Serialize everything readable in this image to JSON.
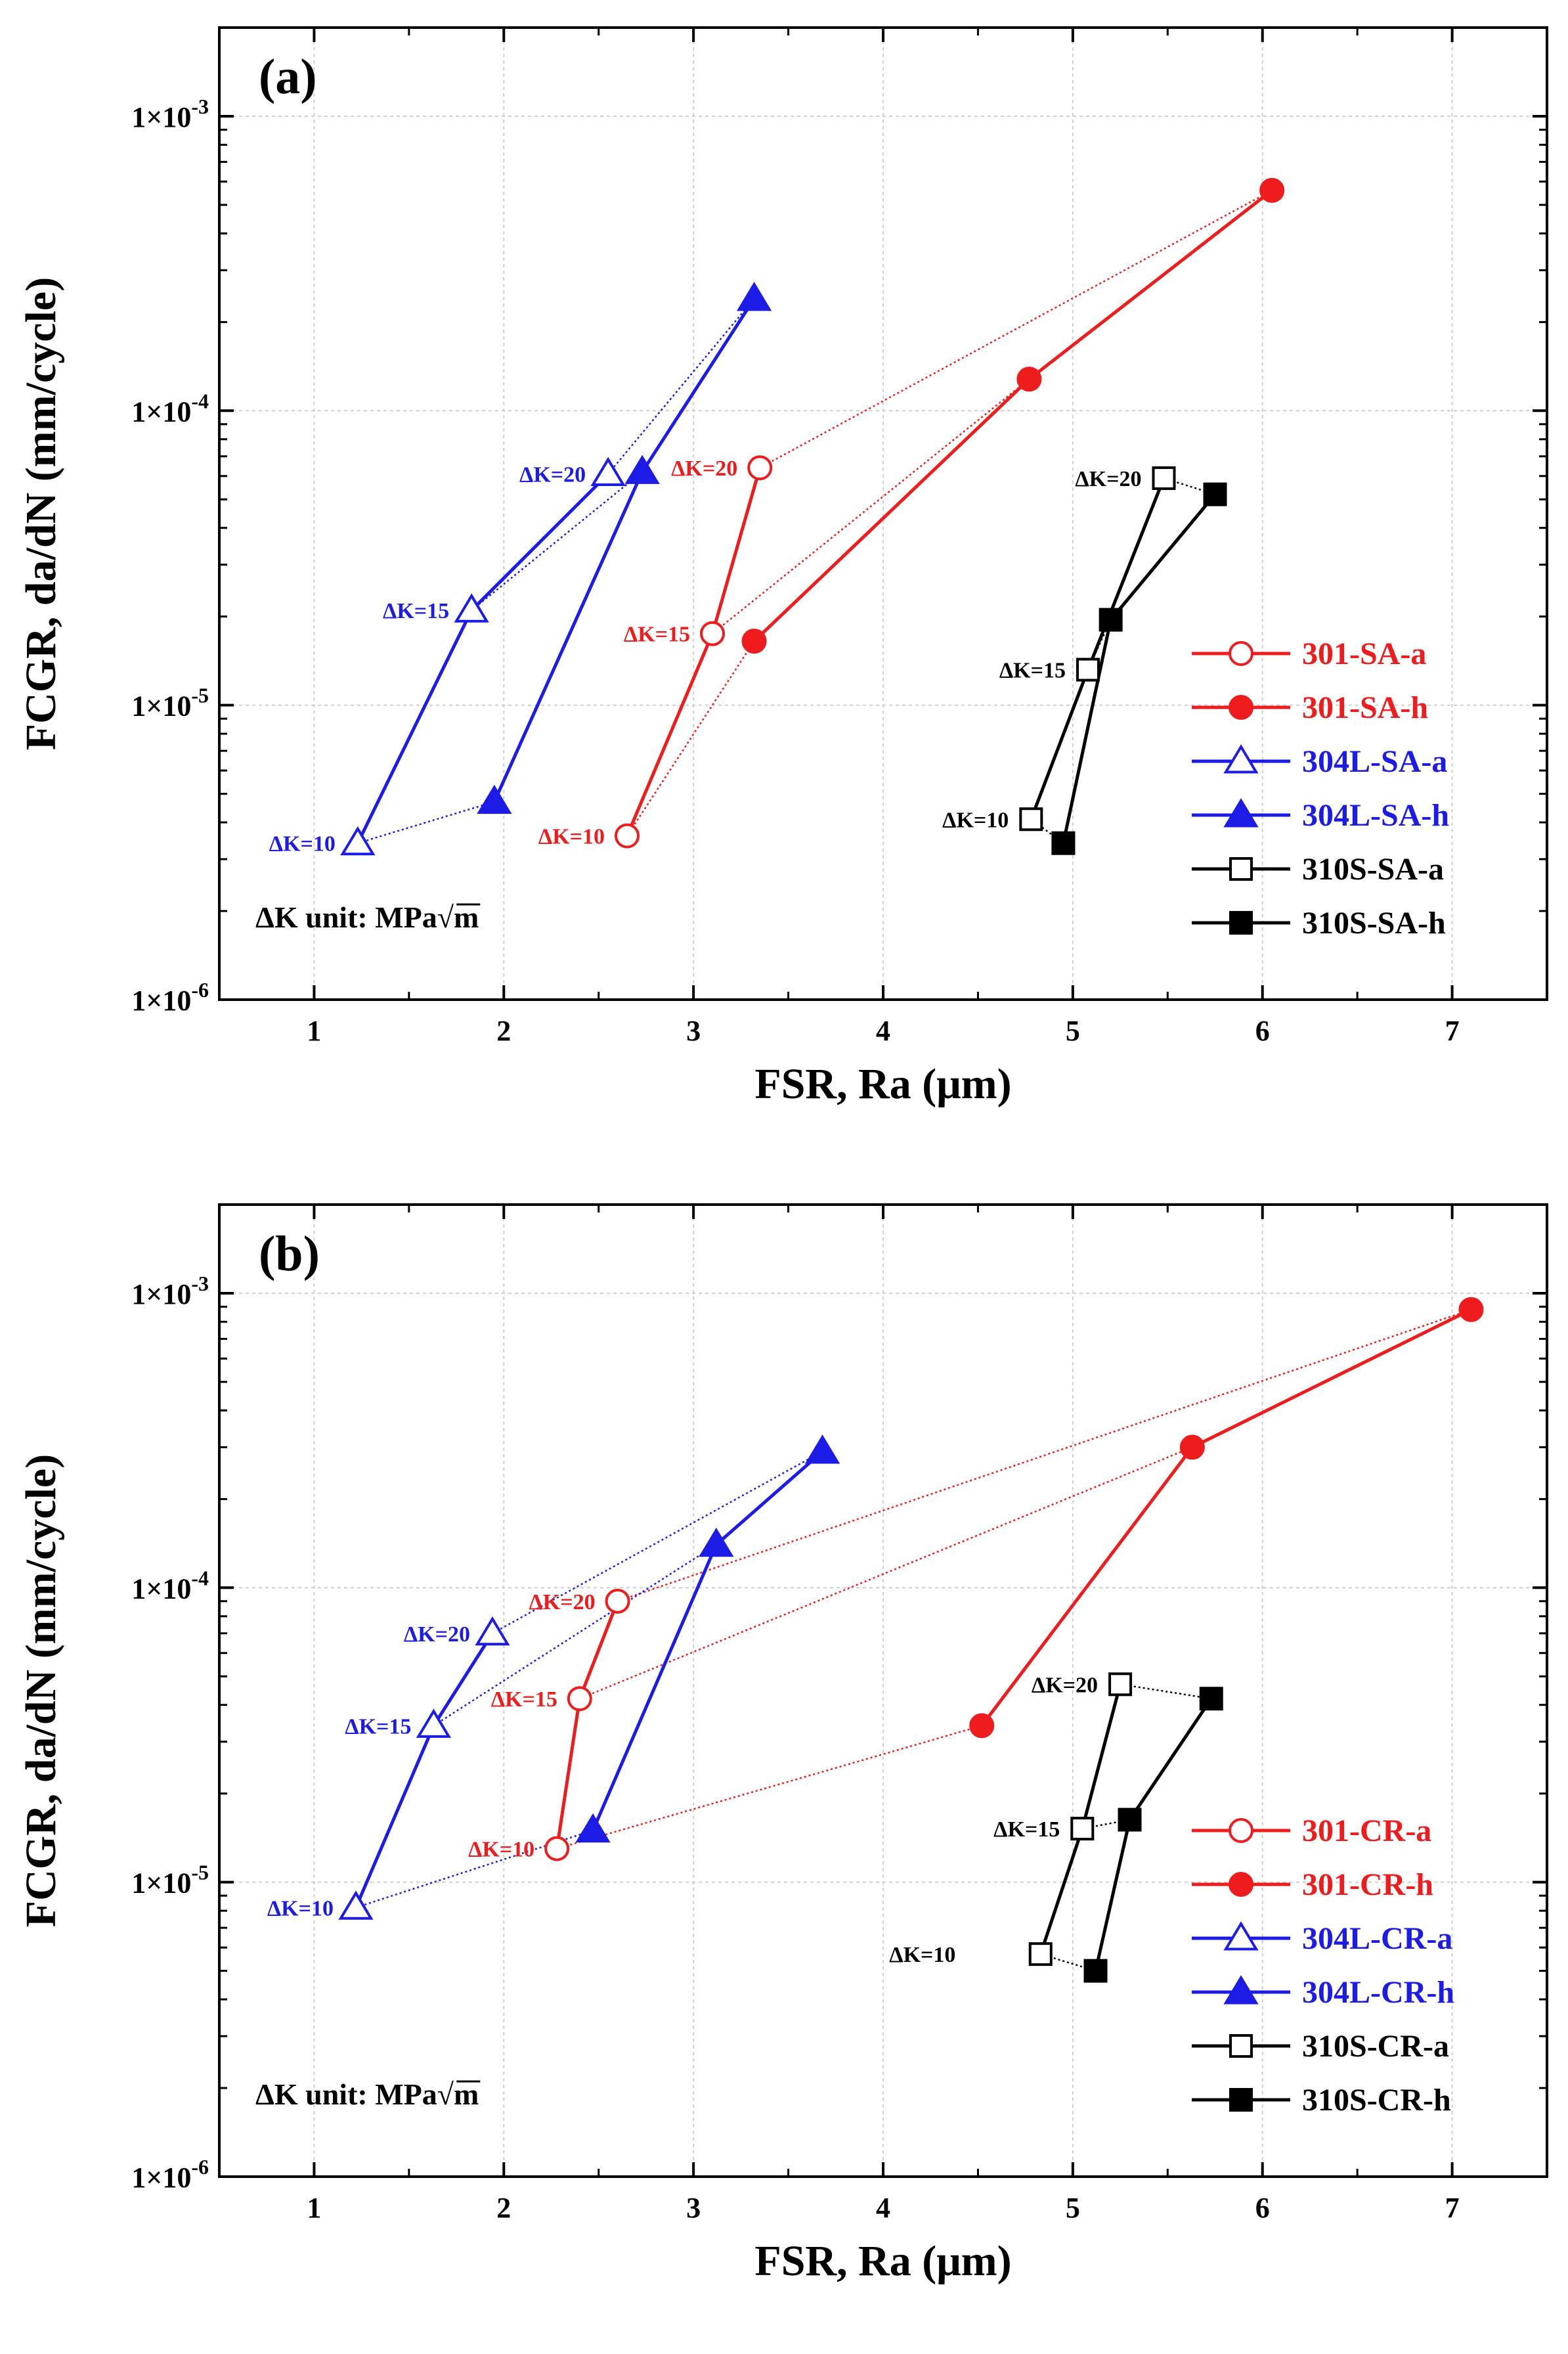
{
  "colors": {
    "red": "#ee1c1c",
    "blue": "#1c1ce6",
    "black": "#000000",
    "grid": "#cfcfcf"
  },
  "chart_data": [
    {
      "type": "line",
      "panel_label": "(a)",
      "xlabel": "FSR, Ra (μm)",
      "ylabel": "FCGR, da/dN (mm/cycle)",
      "xlim": [
        0.5,
        7.5
      ],
      "ylim": [
        1e-06,
        0.002
      ],
      "yscale": "log",
      "xticks": [
        "1",
        "2",
        "3",
        "4",
        "5",
        "6",
        "7"
      ],
      "yticks": [
        {
          "base": "1×10",
          "exp": "-6",
          "value": 1e-06
        },
        {
          "base": "1×10",
          "exp": "-5",
          "value": 1e-05
        },
        {
          "base": "1×10",
          "exp": "-4",
          "value": 0.0001
        },
        {
          "base": "1×10",
          "exp": "-3",
          "value": 0.001
        }
      ],
      "grid": true,
      "legend_position": "right",
      "note": "ΔK unit: MPa√m",
      "series": [
        {
          "name": "301-SA-a",
          "color": "red",
          "marker": "circle-open",
          "x": [
            2.65,
            3.1,
            3.35
          ],
          "y": [
            3.6e-06,
            1.75e-05,
            6.4e-05
          ]
        },
        {
          "name": "301-SA-h",
          "color": "red",
          "marker": "circle-filled",
          "x": [
            3.32,
            4.77,
            6.05
          ],
          "y": [
            1.65e-05,
            0.000128,
            0.00056
          ]
        },
        {
          "name": "304L-SA-a",
          "color": "blue",
          "marker": "triangle-open",
          "x": [
            1.23,
            1.83,
            2.55
          ],
          "y": [
            3.4e-06,
            2.1e-05,
            6.1e-05
          ]
        },
        {
          "name": "304L-SA-h",
          "color": "blue",
          "marker": "triangle-filled",
          "x": [
            1.95,
            2.73,
            3.32
          ],
          "y": [
            4.7e-06,
            6.2e-05,
            0.00024
          ]
        },
        {
          "name": "310S-SA-a",
          "color": "black",
          "marker": "square-open",
          "x": [
            4.78,
            5.08,
            5.48
          ],
          "y": [
            4.1e-06,
            1.32e-05,
            5.9e-05
          ]
        },
        {
          "name": "310S-SA-h",
          "color": "black",
          "marker": "square-filled",
          "x": [
            4.95,
            5.2,
            5.75
          ],
          "y": [
            3.4e-06,
            1.95e-05,
            5.2e-05
          ]
        }
      ],
      "connectors": [
        {
          "color": "red",
          "from": [
            2.65,
            3.6e-06
          ],
          "to": [
            3.32,
            1.65e-05
          ]
        },
        {
          "color": "red",
          "from": [
            3.1,
            1.75e-05
          ],
          "to": [
            4.77,
            0.000128
          ]
        },
        {
          "color": "red",
          "from": [
            3.35,
            6.4e-05
          ],
          "to": [
            6.05,
            0.00056
          ]
        },
        {
          "color": "blue",
          "from": [
            1.23,
            3.4e-06
          ],
          "to": [
            1.95,
            4.7e-06
          ]
        },
        {
          "color": "blue",
          "from": [
            1.83,
            2.1e-05
          ],
          "to": [
            2.73,
            6.2e-05
          ]
        },
        {
          "color": "blue",
          "from": [
            2.55,
            6.1e-05
          ],
          "to": [
            3.32,
            0.00024
          ]
        },
        {
          "color": "black",
          "from": [
            4.78,
            4.1e-06
          ],
          "to": [
            4.95,
            3.4e-06
          ]
        },
        {
          "color": "black",
          "from": [
            5.08,
            1.32e-05
          ],
          "to": [
            5.2,
            1.95e-05
          ]
        },
        {
          "color": "black",
          "from": [
            5.48,
            5.9e-05
          ],
          "to": [
            5.75,
            5.2e-05
          ]
        }
      ],
      "annotations": [
        {
          "text": "ΔK=10",
          "color": "blue",
          "x": 1.23,
          "y": 3.4e-06
        },
        {
          "text": "ΔK=15",
          "color": "blue",
          "x": 1.83,
          "y": 2.1e-05
        },
        {
          "text": "ΔK=20",
          "color": "blue",
          "x": 2.55,
          "y": 6.1e-05
        },
        {
          "text": "ΔK=10",
          "color": "red",
          "x": 2.65,
          "y": 3.6e-06
        },
        {
          "text": "ΔK=15",
          "color": "red",
          "x": 3.1,
          "y": 1.75e-05
        },
        {
          "text": "ΔK=20",
          "color": "red",
          "x": 3.35,
          "y": 6.4e-05
        },
        {
          "text": "ΔK=10",
          "color": "black",
          "x": 4.78,
          "y": 4.1e-06
        },
        {
          "text": "ΔK=15",
          "color": "black",
          "x": 5.08,
          "y": 1.32e-05
        },
        {
          "text": "ΔK=20",
          "color": "black",
          "x": 5.48,
          "y": 5.9e-05
        }
      ]
    },
    {
      "type": "line",
      "panel_label": "(b)",
      "xlabel": "FSR, Ra (μm)",
      "ylabel": "FCGR, da/dN (mm/cycle)",
      "xlim": [
        0.5,
        7.5
      ],
      "ylim": [
        1e-06,
        0.002
      ],
      "yscale": "log",
      "xticks": [
        "1",
        "2",
        "3",
        "4",
        "5",
        "6",
        "7"
      ],
      "yticks": [
        {
          "base": "1×10",
          "exp": "-6",
          "value": 1e-06
        },
        {
          "base": "1×10",
          "exp": "-5",
          "value": 1e-05
        },
        {
          "base": "1×10",
          "exp": "-4",
          "value": 0.0001
        },
        {
          "base": "1×10",
          "exp": "-3",
          "value": 0.001
        }
      ],
      "grid": true,
      "legend_position": "right",
      "note": "ΔK unit: MPa√m",
      "series": [
        {
          "name": "301-CR-a",
          "color": "red",
          "marker": "circle-open",
          "x": [
            2.28,
            2.4,
            2.6
          ],
          "y": [
            1.3e-05,
            4.2e-05,
            9e-05
          ]
        },
        {
          "name": "301-CR-h",
          "color": "red",
          "marker": "circle-filled",
          "x": [
            4.52,
            5.63,
            7.1
          ],
          "y": [
            3.4e-05,
            0.0003,
            0.00088
          ]
        },
        {
          "name": "304L-CR-a",
          "color": "blue",
          "marker": "triangle-open",
          "x": [
            1.22,
            1.63,
            1.94
          ],
          "y": [
            8.2e-06,
            3.4e-05,
            7e-05
          ]
        },
        {
          "name": "304L-CR-h",
          "color": "blue",
          "marker": "triangle-filled",
          "x": [
            2.47,
            3.12,
            3.68
          ],
          "y": [
            1.5e-05,
            0.00014,
            0.00029
          ]
        },
        {
          "name": "310S-CR-a",
          "color": "black",
          "marker": "square-open",
          "x": [
            4.83,
            5.05,
            5.25
          ],
          "y": [
            5.7e-06,
            1.52e-05,
            4.7e-05
          ]
        },
        {
          "name": "310S-CR-h",
          "color": "black",
          "marker": "square-filled",
          "x": [
            5.12,
            5.3,
            5.73
          ],
          "y": [
            5e-06,
            1.63e-05,
            4.2e-05
          ]
        }
      ],
      "connectors": [
        {
          "color": "red",
          "from": [
            2.28,
            1.3e-05
          ],
          "to": [
            4.52,
            3.4e-05
          ]
        },
        {
          "color": "red",
          "from": [
            2.4,
            4.2e-05
          ],
          "to": [
            5.63,
            0.0003
          ]
        },
        {
          "color": "red",
          "from": [
            2.6,
            9e-05
          ],
          "to": [
            7.1,
            0.00088
          ]
        },
        {
          "color": "blue",
          "from": [
            1.22,
            8.2e-06
          ],
          "to": [
            2.47,
            1.5e-05
          ]
        },
        {
          "color": "blue",
          "from": [
            1.63,
            3.4e-05
          ],
          "to": [
            3.12,
            0.00014
          ]
        },
        {
          "color": "blue",
          "from": [
            1.94,
            7e-05
          ],
          "to": [
            3.68,
            0.00029
          ]
        },
        {
          "color": "black",
          "from": [
            4.83,
            5.7e-06
          ],
          "to": [
            5.12,
            5e-06
          ]
        },
        {
          "color": "black",
          "from": [
            5.05,
            1.52e-05
          ],
          "to": [
            5.3,
            1.63e-05
          ]
        },
        {
          "color": "black",
          "from": [
            5.25,
            4.7e-05
          ],
          "to": [
            5.73,
            4.2e-05
          ]
        }
      ],
      "annotations": [
        {
          "text": "ΔK=10",
          "color": "blue",
          "x": 1.22,
          "y": 8.2e-06
        },
        {
          "text": "ΔK=15",
          "color": "blue",
          "x": 1.63,
          "y": 3.4e-05
        },
        {
          "text": "ΔK=20",
          "color": "blue",
          "x": 1.94,
          "y": 7e-05
        },
        {
          "text": "ΔK=10",
          "color": "red",
          "x": 2.28,
          "y": 1.3e-05
        },
        {
          "text": "ΔK=15",
          "color": "red",
          "x": 2.4,
          "y": 4.2e-05
        },
        {
          "text": "ΔK=20",
          "color": "red",
          "x": 2.6,
          "y": 9e-05
        },
        {
          "text": "ΔK=10",
          "color": "black",
          "x": 4.5,
          "y": 5.7e-06
        },
        {
          "text": "ΔK=15",
          "color": "black",
          "x": 5.05,
          "y": 1.52e-05
        },
        {
          "text": "ΔK=20",
          "color": "black",
          "x": 5.25,
          "y": 4.7e-05
        }
      ]
    }
  ]
}
